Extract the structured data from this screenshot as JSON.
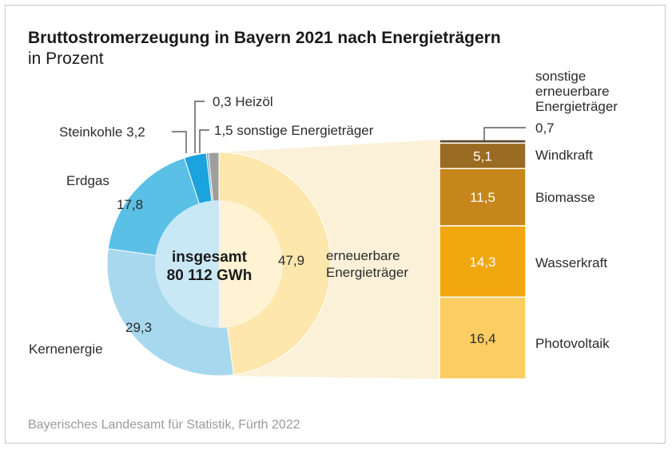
{
  "colors": {
    "kernenergie": "#a7d8ee",
    "erdgas": "#5bc0e6",
    "steinkohle": "#1aa3dc",
    "heizoel": "#5f9fbf",
    "sonstige": "#9e9e9e",
    "erneuerbar": "#fde7ad",
    "erneuerbar_inner": "#fff3d4",
    "inner_blue": "#c9e8f6",
    "connector": "#fbf1d9",
    "windkraft": "#9a6b22",
    "biomasse": "#c6861b",
    "wasserkraft": "#f1a80e",
    "photovoltaik": "#fbcd62",
    "sonstige_erneuerbare": "#5e4a2e"
  },
  "chart_data": [
    {
      "type": "pie",
      "title": "Bruttostromerzeugung in Bayern 2021 nach Energieträgern",
      "subtitle": "in Prozent",
      "center_label": [
        "insgesamt",
        "80 112 GWh"
      ],
      "slices": [
        {
          "label": "erneuerbare Energieträger",
          "value": 47.9,
          "value_text": "47,9"
        },
        {
          "label": "Kernenergie",
          "value": 29.3,
          "value_text": "29,3"
        },
        {
          "label": "Erdgas",
          "value": 17.8,
          "value_text": "17,8"
        },
        {
          "label": "Steinkohle",
          "value": 3.2,
          "value_text": "3,2"
        },
        {
          "label": "Heizöl",
          "value": 0.3,
          "value_text": "0,3"
        },
        {
          "label": "sonstige Energieträger",
          "value": 1.5,
          "value_text": "1,5"
        }
      ]
    },
    {
      "type": "bar",
      "stacked": true,
      "categories": [
        "sonstige erneuerbare Energieträger",
        "Windkraft",
        "Biomasse",
        "Wasserkraft",
        "Photovoltaik"
      ],
      "values": [
        0.7,
        5.1,
        11.5,
        14.3,
        16.4
      ],
      "value_texts": [
        "0,7",
        "5,1",
        "11,5",
        "14,3",
        "16,4"
      ]
    }
  ],
  "labels": {
    "steinkohle": "Steinkohle 3,2",
    "heizoel": "0,3 Heizöl",
    "sonstige": "1,5 sonstige Energieträger",
    "erdgas": "Erdgas",
    "kernenergie": "Kernenergie",
    "erneuerbar_1": "erneuerbare",
    "erneuerbar_2": "Energieträger",
    "sonst_erneuerbar_1": "sonstige",
    "sonst_erneuerbar_2": "erneuerbare",
    "sonst_erneuerbar_3": "Energieträger",
    "sonst_erneuerbar_val": "0,7"
  },
  "source": "Bayerisches Landesamt für Statistik, Fürth 2022"
}
